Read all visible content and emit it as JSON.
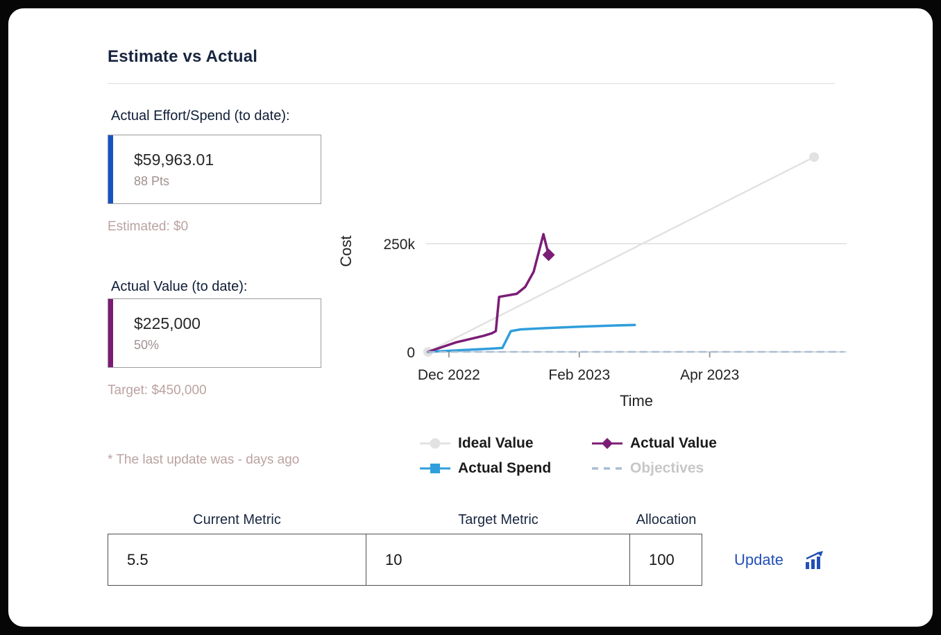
{
  "page": {
    "title": "Estimate vs Actual"
  },
  "metrics": {
    "effort": {
      "label": "Actual Effort/Spend (to date):",
      "value": "$59,963.01",
      "subvalue": "88 Pts",
      "footnote": "Estimated: $0",
      "accent_color": "#1553c4"
    },
    "value": {
      "label": "Actual Value (to date):",
      "value": "$225,000",
      "subvalue": "50%",
      "footnote": "Target: $450,000",
      "accent_color": "#7c1a78"
    },
    "note": "* The last update was - days ago"
  },
  "chart_data": {
    "type": "line",
    "title": "",
    "xlabel": "Time",
    "ylabel": "Cost",
    "x_unit_note": "months since Dec 2022",
    "xlim": [
      -0.35,
      6.1
    ],
    "ylim": [
      0,
      465000
    ],
    "grid": "horizontal-only",
    "legend_position": "bottom",
    "x_ticks": [
      {
        "value": 0,
        "label": "Dec 2022"
      },
      {
        "value": 2,
        "label": "Feb 2023"
      },
      {
        "value": 4,
        "label": "Apr 2023"
      }
    ],
    "y_ticks": [
      {
        "value": 0,
        "label": "0"
      },
      {
        "value": 250000,
        "label": "250k"
      }
    ],
    "series": [
      {
        "name": "Ideal Value",
        "color": "#e2e2e2",
        "width": 2.5,
        "marker": "circle",
        "markers": [
          0,
          -1
        ],
        "points": [
          [
            -0.32,
            0
          ],
          [
            5.6,
            450000
          ]
        ]
      },
      {
        "name": "Actual Spend",
        "color": "#2f9edc",
        "width": 3.5,
        "marker": "square",
        "markers": [],
        "points": [
          [
            -0.32,
            0
          ],
          [
            0.2,
            4000
          ],
          [
            0.6,
            7000
          ],
          [
            0.82,
            9000
          ],
          [
            0.95,
            48000
          ],
          [
            1.1,
            52000
          ],
          [
            1.5,
            55000
          ],
          [
            2.0,
            58000
          ],
          [
            2.55,
            61000
          ],
          [
            2.85,
            62000
          ]
        ]
      },
      {
        "name": "Actual Value",
        "color": "#7b1d76",
        "width": 3.5,
        "marker": "diamond",
        "markers": [
          -1
        ],
        "points": [
          [
            -0.32,
            0
          ],
          [
            0.11,
            22000
          ],
          [
            0.53,
            37000
          ],
          [
            0.66,
            43000
          ],
          [
            0.72,
            48000
          ],
          [
            0.77,
            127000
          ],
          [
            1.04,
            134000
          ],
          [
            1.17,
            150000
          ],
          [
            1.3,
            185000
          ],
          [
            1.45,
            272000
          ],
          [
            1.53,
            224000
          ]
        ]
      },
      {
        "name": "Objectives",
        "color": "#a9bed4",
        "width": 2.5,
        "dashed": true,
        "marker": "dash",
        "markers": [],
        "points": [
          [
            -0.32,
            0
          ],
          [
            6.05,
            0
          ]
        ]
      }
    ]
  },
  "form": {
    "fields": [
      {
        "label": "Current Metric",
        "value": "5.5"
      },
      {
        "label": "Target Metric",
        "value": "10"
      },
      {
        "label": "Allocation",
        "value": "100"
      }
    ],
    "update_label": "Update"
  }
}
